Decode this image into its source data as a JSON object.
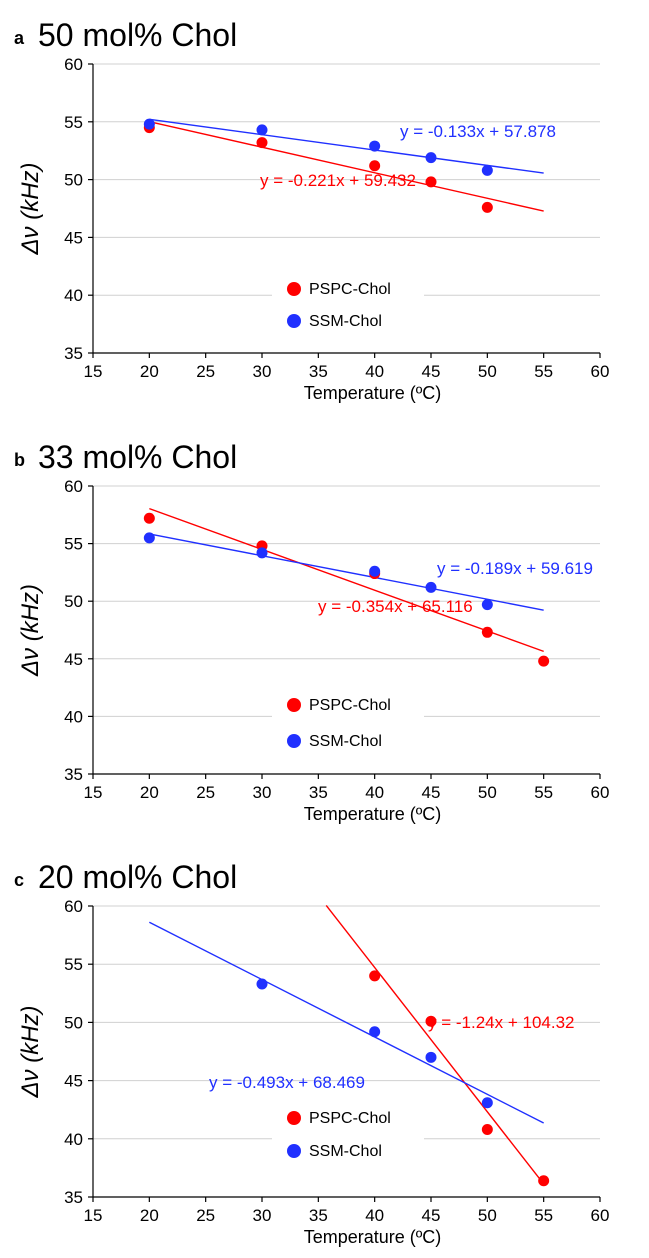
{
  "chart_data": [
    {
      "type": "scatter",
      "panel_label": "a",
      "title": "50 mol% Chol",
      "xlabel": "Temperature (ºC)",
      "ylabel": "Δν (kHz)",
      "xlim": [
        15,
        60
      ],
      "ylim": [
        35,
        60
      ],
      "xticks": [
        15,
        20,
        25,
        30,
        35,
        40,
        45,
        50,
        55,
        60
      ],
      "yticks": [
        35,
        40,
        45,
        50,
        55,
        60
      ],
      "grid": "horizontal",
      "legend_position": "center",
      "series": [
        {
          "name": "PSPC-Chol",
          "color": "#ff0000",
          "points": [
            [
              20,
              54.5
            ],
            [
              30,
              53.2
            ],
            [
              40,
              51.2
            ],
            [
              45,
              49.8
            ],
            [
              50,
              47.6
            ]
          ],
          "fit": {
            "slope": -0.221,
            "intercept": 59.432,
            "x_range": [
              20,
              55
            ],
            "label": "y = -0.221x + 59.432"
          }
        },
        {
          "name": "SSM-Chol",
          "color": "#2030ff",
          "points": [
            [
              20,
              54.8
            ],
            [
              30,
              54.3
            ],
            [
              40,
              52.9
            ],
            [
              45,
              51.9
            ],
            [
              50,
              50.8
            ]
          ],
          "fit": {
            "slope": -0.133,
            "intercept": 57.878,
            "x_range": [
              20,
              55
            ],
            "label": "y = -0.133x + 57.878"
          }
        }
      ]
    },
    {
      "type": "scatter",
      "panel_label": "b",
      "title": "33 mol% Chol",
      "xlabel": "Temperature (ºC)",
      "ylabel": "Δν (kHz)",
      "xlim": [
        15,
        60
      ],
      "ylim": [
        35,
        60
      ],
      "xticks": [
        15,
        20,
        25,
        30,
        35,
        40,
        45,
        50,
        55,
        60
      ],
      "yticks": [
        35,
        40,
        45,
        50,
        55,
        60
      ],
      "grid": "horizontal",
      "legend_position": "center",
      "series": [
        {
          "name": "PSPC-Chol",
          "color": "#ff0000",
          "points": [
            [
              20,
              57.2
            ],
            [
              30,
              54.8
            ],
            [
              40,
              52.4
            ],
            [
              50,
              47.3
            ],
            [
              55,
              44.8
            ]
          ],
          "fit": {
            "slope": -0.354,
            "intercept": 65.116,
            "x_range": [
              20,
              55
            ],
            "label": "y = -0.354x + 65.116"
          }
        },
        {
          "name": "SSM-Chol",
          "color": "#2030ff",
          "points": [
            [
              20,
              55.5
            ],
            [
              30,
              54.2
            ],
            [
              40,
              52.6
            ],
            [
              45,
              51.2
            ],
            [
              50,
              49.7
            ]
          ],
          "fit": {
            "slope": -0.189,
            "intercept": 59.619,
            "x_range": [
              20,
              55
            ],
            "label": "y = -0.189x + 59.619"
          }
        }
      ]
    },
    {
      "type": "scatter",
      "panel_label": "c",
      "title": "20 mol% Chol",
      "xlabel": "Temperature (ºC)",
      "ylabel": "Δν (kHz)",
      "xlim": [
        15,
        60
      ],
      "ylim": [
        35,
        60
      ],
      "xticks": [
        15,
        20,
        25,
        30,
        35,
        40,
        45,
        50,
        55,
        60
      ],
      "yticks": [
        35,
        40,
        45,
        50,
        55,
        60
      ],
      "grid": "horizontal",
      "legend_position": "center",
      "series": [
        {
          "name": "PSPC-Chol",
          "color": "#ff0000",
          "points": [
            [
              40,
              54.0
            ],
            [
              45,
              50.1
            ],
            [
              50,
              40.8
            ],
            [
              55,
              36.4
            ]
          ],
          "fit": {
            "slope": -1.24,
            "intercept": 104.32,
            "x_range": [
              35.7,
              55
            ],
            "label": "y = -1.24x + 104.32"
          }
        },
        {
          "name": "SSM-Chol",
          "color": "#2030ff",
          "points": [
            [
              30,
              53.3
            ],
            [
              40,
              49.2
            ],
            [
              45,
              47.0
            ],
            [
              50,
              43.1
            ]
          ],
          "fit": {
            "slope": -0.493,
            "intercept": 68.469,
            "x_range": [
              20,
              55
            ],
            "label": "y = -0.493x + 68.469"
          }
        }
      ]
    }
  ]
}
